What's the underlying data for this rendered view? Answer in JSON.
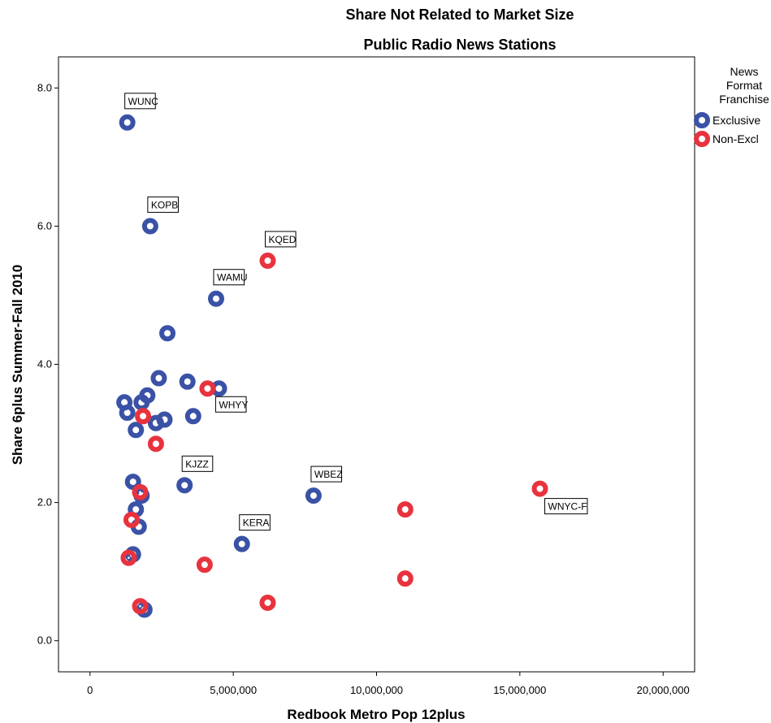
{
  "chart_data": {
    "type": "scatter",
    "title": "Share Not Related to Market Size",
    "subtitle": "Public Radio News Stations",
    "xlabel": "Redbook Metro Pop 12plus",
    "ylabel": "Share 6plus Summer-Fall 2010",
    "xlim": [
      -1100000,
      21100000
    ],
    "ylim": [
      -0.45,
      8.45
    ],
    "xticks": [
      0,
      5000000,
      10000000,
      15000000,
      20000000
    ],
    "xtick_labels": [
      "0",
      "5,000,000",
      "10,000,000",
      "15,000,000",
      "20,000,000"
    ],
    "yticks": [
      0,
      2,
      4,
      6,
      8
    ],
    "ytick_labels": [
      "0.0",
      "2.0",
      "4.0",
      "6.0",
      "8.0"
    ],
    "grid": false,
    "legend": {
      "title_lines": [
        "News",
        "Format",
        "Franchise"
      ],
      "placement": "right",
      "entries": [
        {
          "name": "Exclusive",
          "color": "#3a52a6"
        },
        {
          "name": "Non-Excl",
          "color": "#e8333e"
        }
      ]
    },
    "series": [
      {
        "name": "Exclusive",
        "color": "#3a52a6",
        "points": [
          {
            "x": 1300000,
            "y": 7.5,
            "label": "WUNC"
          },
          {
            "x": 2100000,
            "y": 6.0,
            "label": "KOPB"
          },
          {
            "x": 4400000,
            "y": 4.95,
            "label": "WAMU"
          },
          {
            "x": 2700000,
            "y": 4.45
          },
          {
            "x": 2400000,
            "y": 3.8
          },
          {
            "x": 3400000,
            "y": 3.75
          },
          {
            "x": 4500000,
            "y": 3.65
          },
          {
            "x": 2000000,
            "y": 3.55
          },
          {
            "x": 1200000,
            "y": 3.45
          },
          {
            "x": 1800000,
            "y": 3.45
          },
          {
            "x": 1300000,
            "y": 3.3
          },
          {
            "x": 3600000,
            "y": 3.25
          },
          {
            "x": 2600000,
            "y": 3.2
          },
          {
            "x": 2300000,
            "y": 3.15
          },
          {
            "x": 1600000,
            "y": 3.05
          },
          {
            "x": 3300000,
            "y": 2.25,
            "label": "KJZZ"
          },
          {
            "x": 1500000,
            "y": 2.3
          },
          {
            "x": 1800000,
            "y": 2.1
          },
          {
            "x": 7800000,
            "y": 2.1,
            "label": "WBEZ"
          },
          {
            "x": 1600000,
            "y": 1.9
          },
          {
            "x": 1700000,
            "y": 1.65
          },
          {
            "x": 5300000,
            "y": 1.4,
            "label": "KERA"
          },
          {
            "x": 1500000,
            "y": 1.25
          },
          {
            "x": 1900000,
            "y": 0.45
          }
        ]
      },
      {
        "name": "Non-Excl",
        "color": "#e8333e",
        "points": [
          {
            "x": 6200000,
            "y": 5.5,
            "label": "KQED"
          },
          {
            "x": 4100000,
            "y": 3.65,
            "label": "WHYY"
          },
          {
            "x": 1850000,
            "y": 3.25
          },
          {
            "x": 2300000,
            "y": 2.85
          },
          {
            "x": 1750000,
            "y": 2.15
          },
          {
            "x": 15700000,
            "y": 2.2,
            "label": "WNYC-F"
          },
          {
            "x": 11000000,
            "y": 1.9
          },
          {
            "x": 1450000,
            "y": 1.75
          },
          {
            "x": 1350000,
            "y": 1.2
          },
          {
            "x": 4000000,
            "y": 1.1
          },
          {
            "x": 11000000,
            "y": 0.9
          },
          {
            "x": 6200000,
            "y": 0.55
          },
          {
            "x": 1750000,
            "y": 0.5
          }
        ]
      }
    ]
  }
}
